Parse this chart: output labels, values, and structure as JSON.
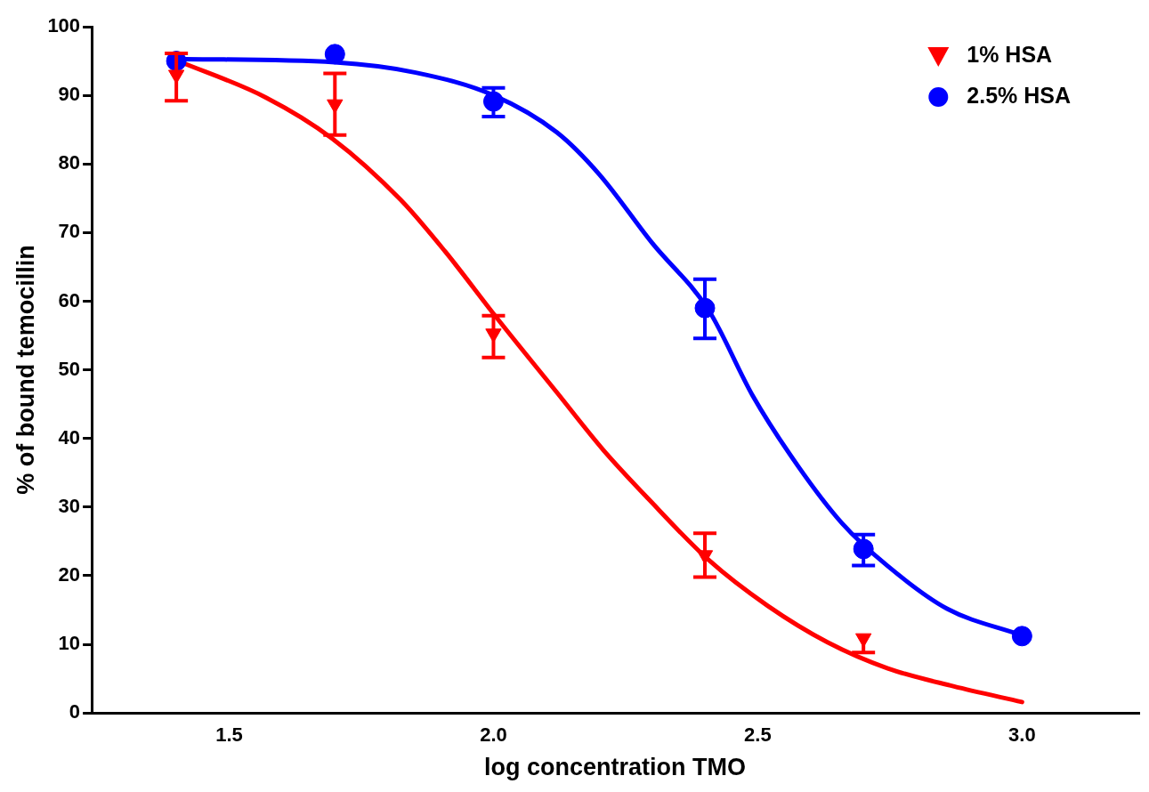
{
  "chart_data": {
    "type": "scatter",
    "xlabel": "log concentration TMO",
    "ylabel": "% of bound temocillin",
    "xlim": [
      1.24,
      3.22
    ],
    "xticks": [
      1.5,
      {
        "value": 2,
        "label": "2.0"
      },
      2.5,
      {
        "value": 3,
        "label": "3.0"
      }
    ],
    "ylim": [
      0,
      100
    ],
    "yticks": [
      0,
      10,
      20,
      30,
      40,
      50,
      60,
      70,
      80,
      90,
      100
    ],
    "grid": false,
    "legend": "top right",
    "series": [
      {
        "type": "line",
        "color": "#ff0000",
        "marker": "none",
        "x": [
          1.4,
          1.569,
          1.695,
          1.824,
          1.908,
          2.008,
          2.12,
          2.208,
          2.293,
          2.407,
          2.519,
          2.632,
          2.746,
          2.87,
          3.0
        ],
        "values": [
          95.1,
          89.7,
          83.7,
          74.8,
          67.3,
          57.4,
          46.7,
          38.3,
          31.2,
          22.3,
          15.6,
          10.3,
          6.5,
          3.9,
          1.6
        ]
      },
      {
        "type": "line",
        "color": "#0000ff",
        "marker": "none",
        "x": [
          1.4,
          1.7,
          1.853,
          2.0,
          2.12,
          2.2,
          2.3,
          2.407,
          2.49,
          2.576,
          2.66,
          2.746,
          2.858,
          3.0
        ],
        "values": [
          95.3,
          94.8,
          93.3,
          90.0,
          84.6,
          78.5,
          68.5,
          58.7,
          46.3,
          36.0,
          27.6,
          21.4,
          15.2,
          11.3
        ]
      },
      {
        "name": "1% HSA",
        "color": "#ff0000",
        "marker": "triangle",
        "x": [
          1.4,
          1.7,
          2.0,
          2.4,
          2.7
        ],
        "values": [
          93,
          88.7,
          55.3,
          23,
          10.9
        ],
        "errors": [
          [
            89.2,
            96.1
          ],
          [
            84.2,
            93.2
          ],
          [
            51.8,
            57.9
          ],
          [
            19.8,
            26.2
          ],
          [
            8.8,
            10.9
          ]
        ]
      },
      {
        "name": "2.5% HSA",
        "color": "#0000ff",
        "marker": "circle",
        "x": [
          1.4,
          1.7,
          2.0,
          2.4,
          2.7,
          3.0
        ],
        "values": [
          95,
          96,
          89.1,
          59,
          23.9,
          11.2
        ],
        "errors": [
          null,
          null,
          [
            86.9,
            91.1
          ],
          [
            54.6,
            63.2
          ],
          [
            21.5,
            26
          ],
          null
        ]
      }
    ]
  }
}
